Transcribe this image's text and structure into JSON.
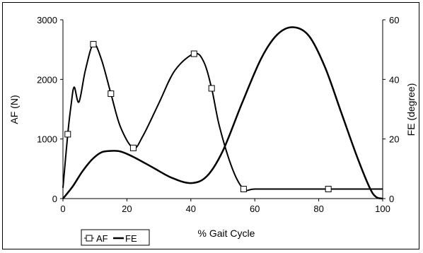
{
  "chart_data": {
    "type": "line",
    "xlabel": "% Gait Cycle",
    "ylabel_left": "AF (N)",
    "ylabel_right": "FE (degree)",
    "xlim": [
      0,
      100
    ],
    "ylim_left": [
      0,
      3000
    ],
    "ylim_right": [
      0,
      60
    ],
    "x_ticks": [
      "0",
      "20",
      "40",
      "60",
      "80",
      "100"
    ],
    "y_left_ticks": [
      "0",
      "1000",
      "2000",
      "3000"
    ],
    "y_right_ticks": [
      "0",
      "20",
      "40",
      "60"
    ],
    "grid": false,
    "legend_position": "bottom-left",
    "series": [
      {
        "name": "AF",
        "axis": "left",
        "marker": "square",
        "x": [
          0,
          1.5,
          2.5,
          3.5,
          5,
          7,
          9.5,
          12,
          15,
          18,
          22,
          25,
          30,
          35,
          41,
          44,
          46.5,
          49,
          53,
          56.5,
          60,
          70,
          83,
          90,
          100
        ],
        "y": [
          180,
          1080,
          1550,
          1870,
          1620,
          2150,
          2590,
          2340,
          1760,
          1200,
          850,
          1050,
          1600,
          2150,
          2430,
          2300,
          1850,
          1200,
          500,
          160,
          160,
          160,
          160,
          160,
          160
        ],
        "marker_x": [
          1.5,
          9.5,
          15,
          22,
          41,
          46.5,
          56.5,
          83
        ],
        "marker_y": [
          1080,
          2590,
          1760,
          850,
          2430,
          1850,
          160,
          160
        ]
      },
      {
        "name": "FE",
        "axis": "right",
        "x": [
          0,
          3,
          6,
          9,
          12,
          15,
          18,
          22,
          28,
          34,
          40,
          45,
          50,
          56,
          62,
          67,
          72,
          77,
          82,
          87,
          92,
          96,
          98,
          100
        ],
        "y": [
          0,
          4,
          9,
          13,
          15.5,
          16,
          15.8,
          14,
          10.5,
          7,
          5.2,
          7.5,
          16,
          32,
          47,
          55,
          57.5,
          54.5,
          44,
          29,
          14,
          3.5,
          0.5,
          0
        ]
      }
    ]
  }
}
